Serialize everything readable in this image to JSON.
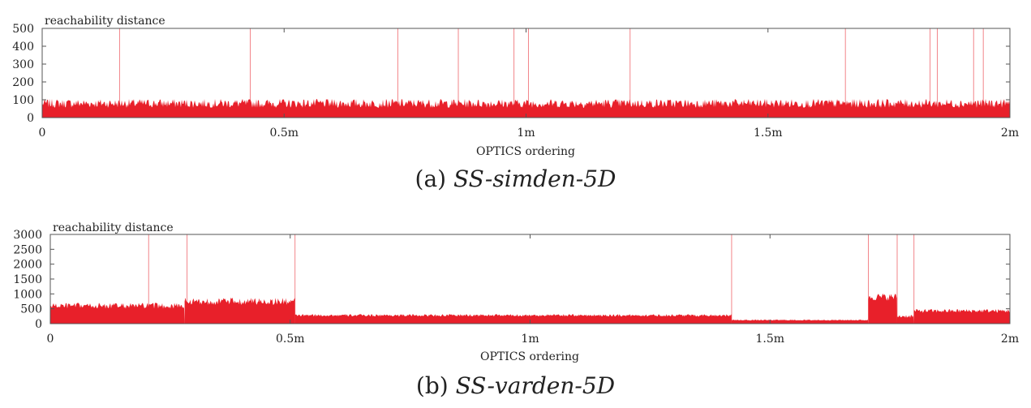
{
  "chart_data": [
    {
      "type": "area",
      "ylabel": "reachability distance",
      "xlabel": "OPTICS ordering",
      "caption_prefix": "(a)",
      "caption_name": "SS-simden-5D",
      "color": "#e8202a",
      "ylim": [
        0,
        500
      ],
      "yticks": [
        0,
        100,
        200,
        300,
        400,
        500
      ],
      "xlim": [
        0,
        2000000
      ],
      "xticks": [
        0,
        500000,
        1000000,
        1500000,
        2000000
      ],
      "xtick_labels": [
        "0",
        "0.5m",
        "1m",
        "1.5m",
        "2m"
      ],
      "grid": false,
      "segments": [
        {
          "x_start": 0,
          "x_end": 2000000,
          "baseline": 80,
          "noise": 50
        }
      ],
      "spikes_x": [
        160000,
        430000,
        735000,
        860000,
        975000,
        1005000,
        1215000,
        1660000,
        1835000,
        1850000,
        1925000,
        1945000
      ],
      "spike_value": 500
    },
    {
      "type": "area",
      "ylabel": "reachability distance",
      "xlabel": "OPTICS ordering",
      "caption_prefix": "(b)",
      "caption_name": "SS-varden-5D",
      "color": "#e8202a",
      "ylim": [
        0,
        3000
      ],
      "yticks": [
        0,
        500,
        1000,
        1500,
        2000,
        2500,
        3000
      ],
      "xlim": [
        0,
        2000000
      ],
      "xticks": [
        0,
        500000,
        1000000,
        1500000,
        2000000
      ],
      "xtick_labels": [
        "0",
        "0.5m",
        "1m",
        "1.5m",
        "2m"
      ],
      "grid": false,
      "segments": [
        {
          "x_start": 0,
          "x_end": 280000,
          "baseline": 600,
          "noise": 200
        },
        {
          "x_start": 280000,
          "x_end": 510000,
          "baseline": 750,
          "noise": 250
        },
        {
          "x_start": 510000,
          "x_end": 1420000,
          "baseline": 280,
          "noise": 80
        },
        {
          "x_start": 1420000,
          "x_end": 1705000,
          "baseline": 120,
          "noise": 30
        },
        {
          "x_start": 1705000,
          "x_end": 1765000,
          "baseline": 900,
          "noise": 250
        },
        {
          "x_start": 1765000,
          "x_end": 1800000,
          "baseline": 250,
          "noise": 120
        },
        {
          "x_start": 1800000,
          "x_end": 2000000,
          "baseline": 430,
          "noise": 130
        }
      ],
      "spikes_x": [
        205000,
        285000,
        510000,
        1420000,
        1705000,
        1765000,
        1800000
      ],
      "spike_value": 3000
    }
  ]
}
